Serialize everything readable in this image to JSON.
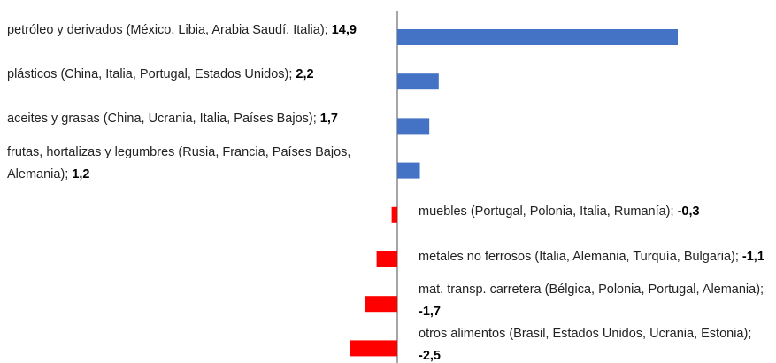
{
  "chart_data": {
    "type": "bar",
    "orientation": "horizontal",
    "categories": [
      "petróleo y derivados (México, Libia, Arabia Saudí, Italia);",
      "plásticos (China, Italia, Portugal, Estados Unidos);",
      "aceites y grasas (China, Ucrania, Italia, Países Bajos);",
      "frutas, hortalizas y legumbres (Rusia, Francia, Países Bajos, Alemania);",
      "muebles (Portugal, Polonia, Italia, Rumanía);",
      "metales no ferrosos (Italia, Alemania, Turquía, Bulgaria);",
      "mat. transp. carretera (Bélgica, Polonia, Portugal, Alemania);",
      "otros alimentos (Brasil, Estados Unidos, Ucrania, Estonia);"
    ],
    "values": [
      14.9,
      2.2,
      1.7,
      1.2,
      -0.3,
      -1.1,
      -1.7,
      -2.5
    ],
    "value_labels": [
      "14,9",
      "2,2",
      "1,7",
      "1,2",
      "-0,3",
      "-1,1",
      "-1,7",
      "-2,5"
    ],
    "colors": [
      "#4472c4",
      "#4472c4",
      "#4472c4",
      "#4472c4",
      "#ff0000",
      "#ff0000",
      "#ff0000",
      "#ff0000"
    ]
  }
}
